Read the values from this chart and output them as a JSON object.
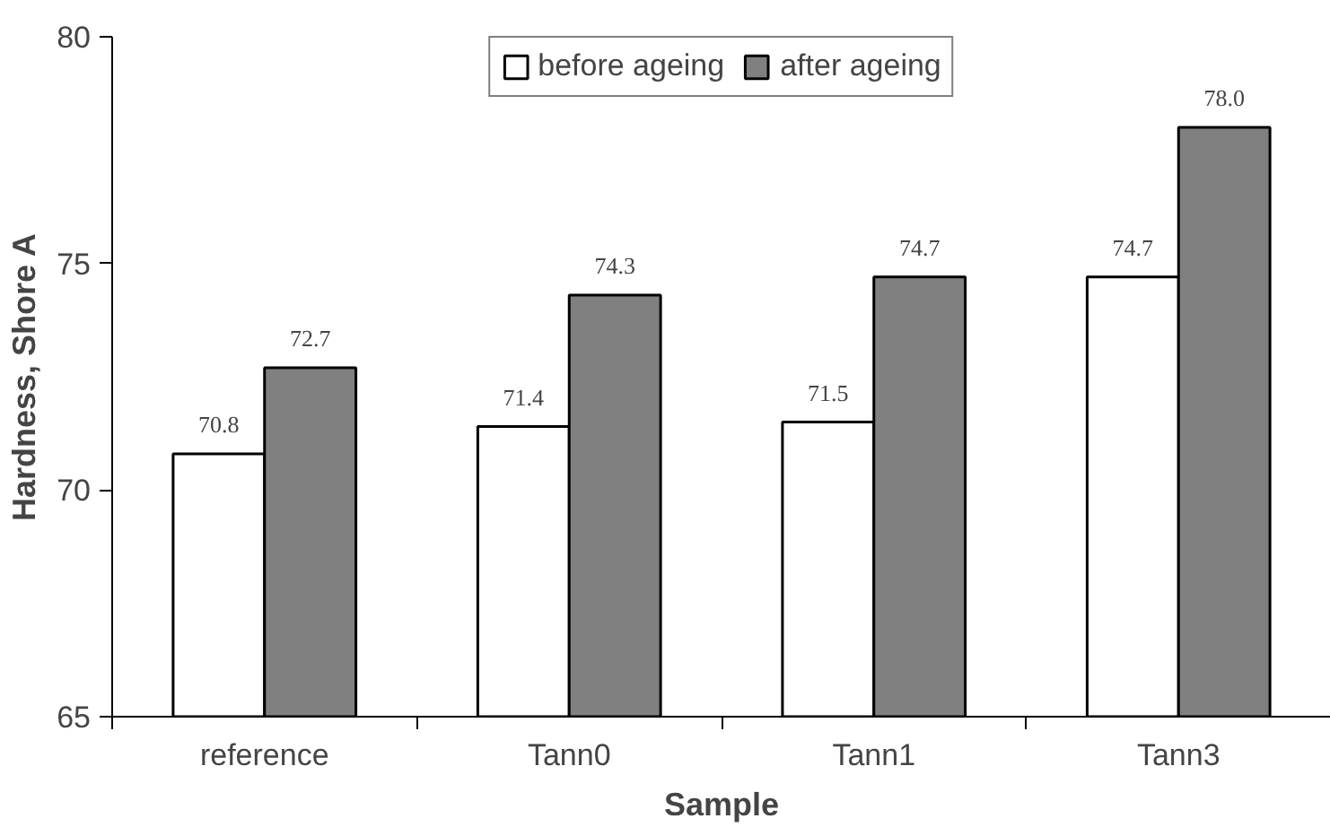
{
  "chart_data": {
    "type": "bar",
    "xlabel": "Sample",
    "ylabel": "Hardness, Shore A",
    "categories": [
      "reference",
      "Tann0",
      "Tann1",
      "Tann3"
    ],
    "series": [
      {
        "name": "before ageing",
        "color": "#ffffff",
        "values": [
          70.8,
          71.4,
          71.5,
          74.7
        ],
        "value_labels": [
          "70.8",
          "71.4",
          "71.5",
          "74.7"
        ]
      },
      {
        "name": "after ageing",
        "color": "#808080",
        "values": [
          72.7,
          74.3,
          74.7,
          78.0
        ],
        "value_labels": [
          "72.7",
          "74.3",
          "74.7",
          "78.0"
        ]
      }
    ],
    "ylim": [
      65,
      80
    ],
    "yticks": [
      65,
      70,
      75,
      80
    ],
    "grid": false,
    "legend": "top"
  }
}
